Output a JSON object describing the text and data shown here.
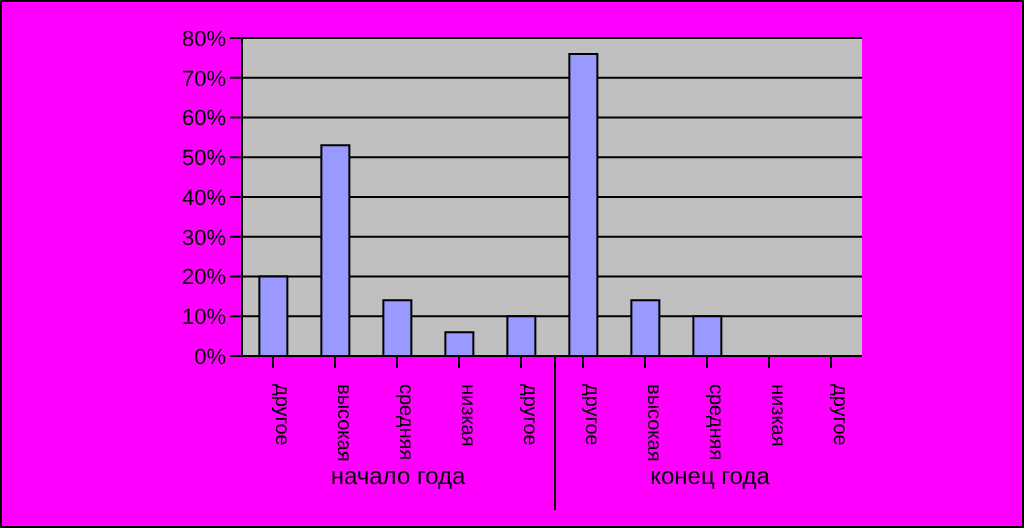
{
  "chart_data": {
    "type": "bar",
    "categories": [
      "другое",
      "высокая",
      "средняя",
      "низкая",
      "другое",
      "другое",
      "высокая",
      "средняя",
      "низкая",
      "другое"
    ],
    "values": [
      20,
      53,
      14,
      6,
      10,
      76,
      14,
      10,
      0,
      0
    ],
    "color": "#9999ff",
    "ylim": [
      0,
      80
    ],
    "yticks": [
      {
        "value": 0,
        "label": "0%"
      },
      {
        "value": 10,
        "label": "10%"
      },
      {
        "value": 20,
        "label": "20%"
      },
      {
        "value": 30,
        "label": "30%"
      },
      {
        "value": 40,
        "label": "40%"
      },
      {
        "value": 50,
        "label": "50%"
      },
      {
        "value": 60,
        "label": "60%"
      },
      {
        "value": 70,
        "label": "70%"
      },
      {
        "value": 80,
        "label": "80%"
      }
    ],
    "grid": "y",
    "annotations": [
      "начало года",
      "конец года"
    ]
  }
}
